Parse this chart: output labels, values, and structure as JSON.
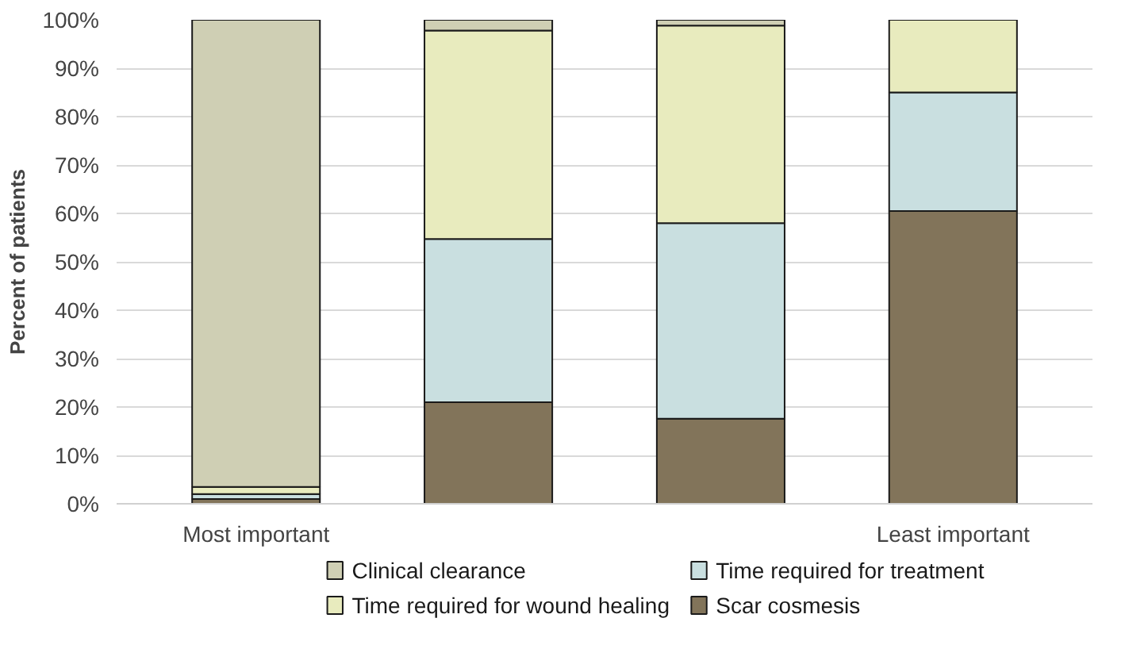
{
  "chart_data": {
    "type": "bar",
    "stacked": true,
    "ylabel": "Percent of patients",
    "categories": [
      "Most important",
      null,
      null,
      "Least important"
    ],
    "series": [
      {
        "name": "Scar cosmesis",
        "color": "#82745a",
        "values": [
          1,
          21,
          17.6,
          60.5
        ]
      },
      {
        "name": "Time required for treatment",
        "color": "#c9dfe0",
        "values": [
          1,
          33.7,
          40.4,
          24.5
        ]
      },
      {
        "name": "Time required for wound healing",
        "color": "#e8ebbe",
        "values": [
          1.5,
          43.1,
          40.8,
          15
        ]
      },
      {
        "name": "Clinical clearance",
        "color": "#cfcfb4",
        "values": [
          96.5,
          2.2,
          1.2,
          0
        ]
      }
    ],
    "ylim": [
      0,
      100
    ],
    "yticks": [
      {
        "value": 0,
        "label": "0%"
      },
      {
        "value": 10,
        "label": "10%"
      },
      {
        "value": 20,
        "label": "20%"
      },
      {
        "value": 30,
        "label": "30%"
      },
      {
        "value": 40,
        "label": "40%"
      },
      {
        "value": 50,
        "label": "50%"
      },
      {
        "value": 60,
        "label": "60%"
      },
      {
        "value": 70,
        "label": "70%"
      },
      {
        "value": 80,
        "label": "80%"
      },
      {
        "value": 90,
        "label": "90%"
      },
      {
        "value": 100,
        "label": "100%"
      }
    ],
    "grid": "y",
    "legend": "bottom"
  }
}
